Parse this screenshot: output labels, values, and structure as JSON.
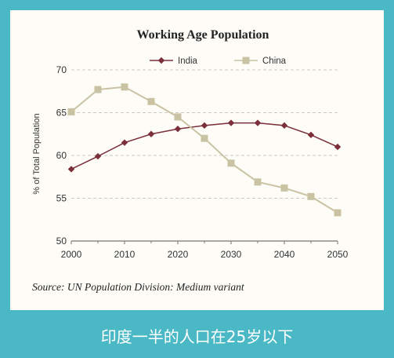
{
  "chart_data": {
    "type": "line",
    "title": "Working Age Population",
    "ylabel": "% of Total Population",
    "xlabel": "",
    "x": [
      2000,
      2005,
      2010,
      2015,
      2020,
      2025,
      2030,
      2035,
      2040,
      2045,
      2050
    ],
    "xticks": [
      "2000",
      "2010",
      "2020",
      "2030",
      "2040",
      "2050"
    ],
    "yticks": [
      "50",
      "55",
      "60",
      "65",
      "70"
    ],
    "ylim": [
      50,
      70
    ],
    "xlim": [
      2000,
      2050
    ],
    "grid": "horizontal dashed",
    "legend_position": "top",
    "series": [
      {
        "name": "India",
        "color": "#7b2f3a",
        "marker": "diamond",
        "values": [
          58.4,
          59.9,
          61.5,
          62.5,
          63.1,
          63.5,
          63.8,
          63.8,
          63.5,
          62.4,
          61.0
        ]
      },
      {
        "name": "China",
        "color": "#c9c2a3",
        "marker": "square",
        "values": [
          65.1,
          67.7,
          68.0,
          66.3,
          64.5,
          62.0,
          59.1,
          56.9,
          56.2,
          55.2,
          53.3
        ]
      }
    ],
    "source": "Source: UN Population Division: Medium variant"
  },
  "footer": {
    "caption": "印度一半的人口在25岁以下"
  }
}
